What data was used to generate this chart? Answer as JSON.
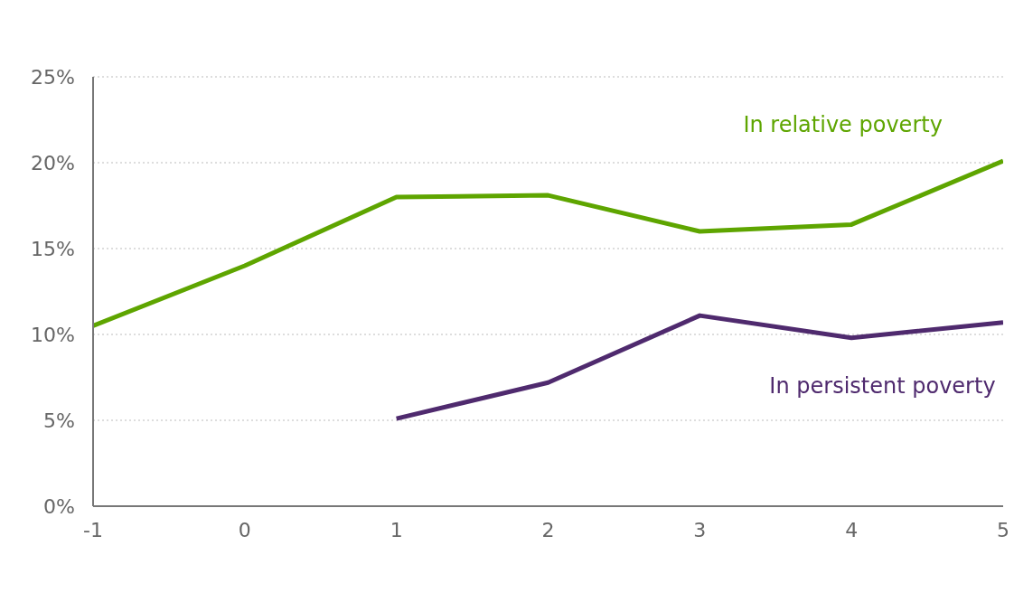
{
  "chart_data": {
    "type": "line",
    "x": [
      -1,
      0,
      1,
      2,
      3,
      4,
      5
    ],
    "series": [
      {
        "name": "In relative poverty",
        "color": "#5ea500",
        "values": [
          10.5,
          14,
          18,
          18.1,
          16,
          16.4,
          20.1
        ]
      },
      {
        "name": "In persistent poverty",
        "color": "#4f2a6e",
        "values": [
          null,
          null,
          5.1,
          7.2,
          11.1,
          9.8,
          10.7
        ]
      }
    ],
    "xlim": [
      -1,
      5
    ],
    "xticks": [
      -1,
      0,
      1,
      2,
      3,
      4,
      5
    ],
    "ylim": [
      0,
      25
    ],
    "yticks": [
      {
        "value": 0,
        "label": "0%"
      },
      {
        "value": 5,
        "label": "5%"
      },
      {
        "value": 10,
        "label": "10%"
      },
      {
        "value": 15,
        "label": "15%"
      },
      {
        "value": 20,
        "label": "20%"
      },
      {
        "value": 25,
        "label": "25%"
      }
    ],
    "grid": "y",
    "legend": false
  }
}
